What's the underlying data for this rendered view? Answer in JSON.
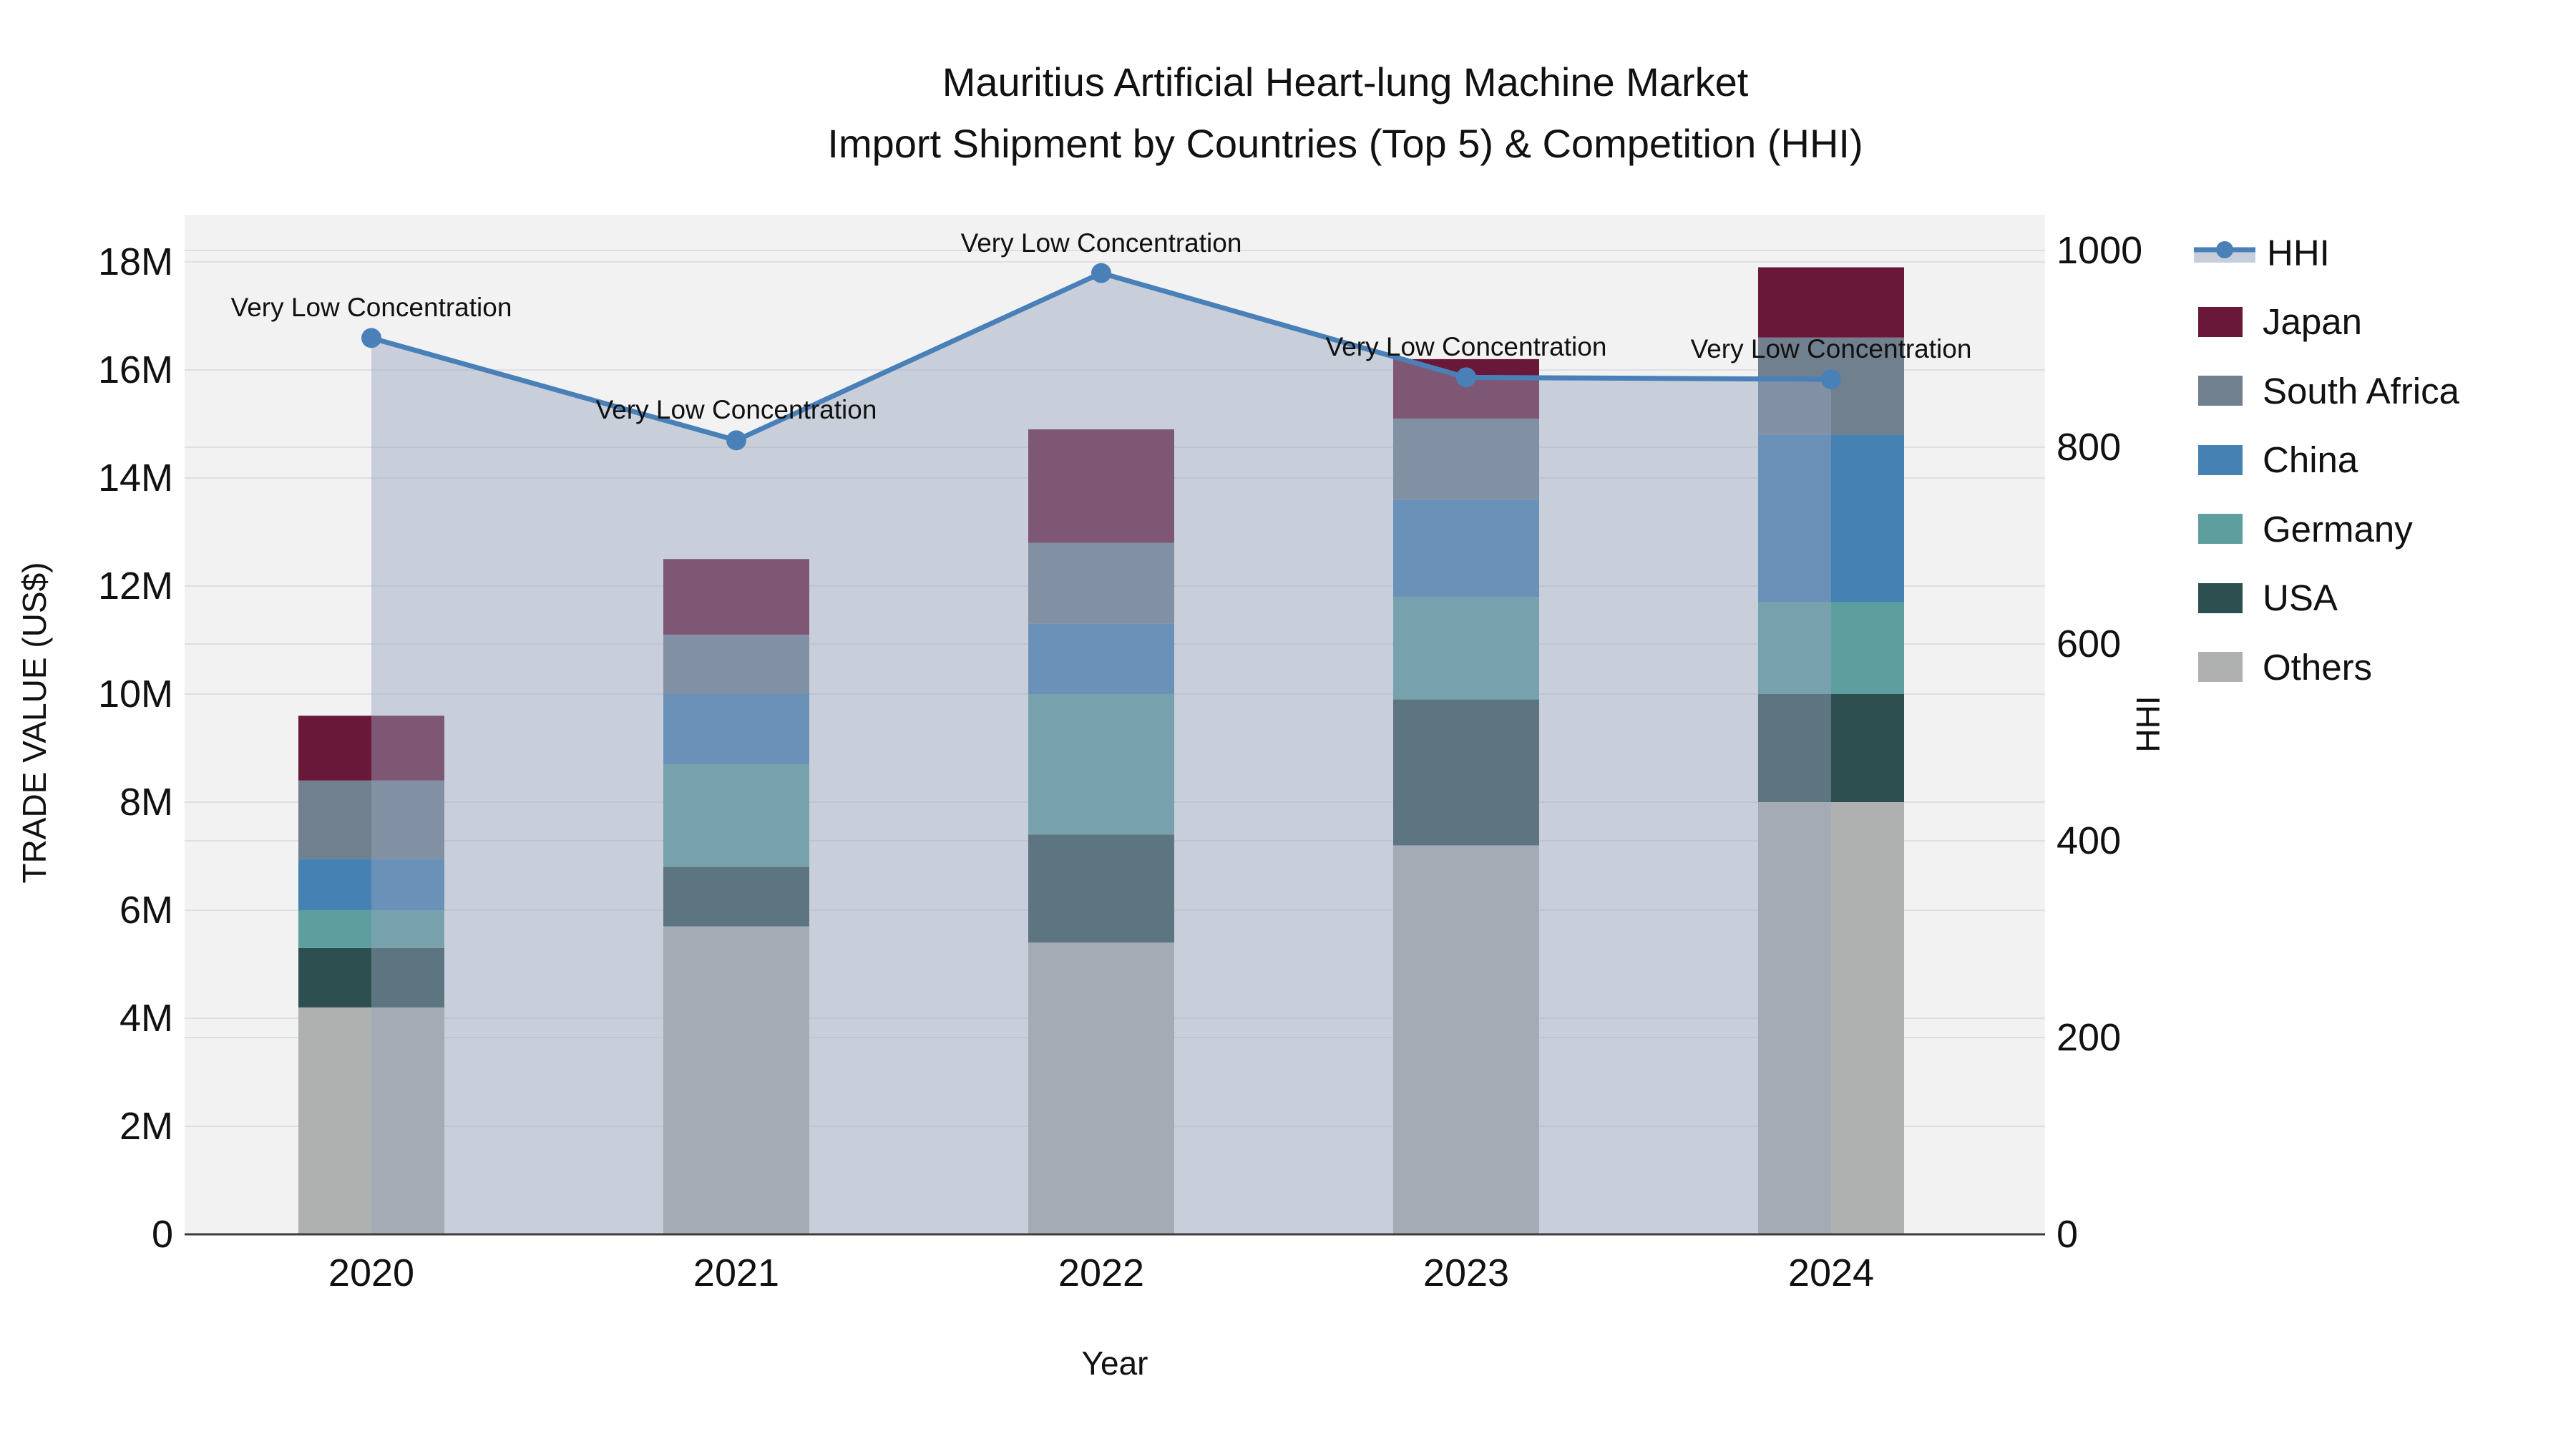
{
  "title": {
    "line1": "Mauritius Artificial Heart-lung Machine Market",
    "line2": "Import Shipment by Countries (Top 5) & Competition (HHI)"
  },
  "axes": {
    "left": {
      "label": "TRADE VALUE (US$)",
      "tick_labels": [
        "0",
        "2M",
        "4M",
        "6M",
        "8M",
        "10M",
        "12M",
        "14M",
        "16M",
        "18M"
      ],
      "tick_values": [
        0,
        2,
        4,
        6,
        8,
        10,
        12,
        14,
        16,
        18
      ],
      "unit": "million US$",
      "range": [
        0,
        18.87
      ]
    },
    "right": {
      "label": "HHI",
      "tick_labels": [
        "0",
        "200",
        "400",
        "600",
        "800",
        "1000"
      ],
      "tick_values": [
        0,
        200,
        400,
        600,
        800,
        1000
      ],
      "range": [
        0,
        1036
      ]
    },
    "x": {
      "label": "Year",
      "categories": [
        "2020",
        "2021",
        "2022",
        "2023",
        "2024"
      ]
    }
  },
  "chart_data": {
    "type": "bar+line",
    "subtype": "stacked-bars-with-secondary-axis-line",
    "categories": [
      "2020",
      "2021",
      "2022",
      "2023",
      "2024"
    ],
    "stack_order_bottom_to_top": [
      "Others",
      "USA",
      "Germany",
      "China",
      "South Africa",
      "Japan"
    ],
    "series": [
      {
        "name": "Japan",
        "color": "#691839",
        "values": [
          1.2,
          1.4,
          2.1,
          1.1,
          1.3
        ]
      },
      {
        "name": "South Africa",
        "color": "#71808f",
        "values": [
          1.45,
          1.1,
          1.5,
          1.5,
          1.8
        ]
      },
      {
        "name": "China",
        "color": "#4681b4",
        "values": [
          0.95,
          1.3,
          1.3,
          1.8,
          3.1
        ]
      },
      {
        "name": "Germany",
        "color": "#5d9f9e",
        "values": [
          0.7,
          1.9,
          2.6,
          1.9,
          1.7
        ]
      },
      {
        "name": "USA",
        "color": "#2e4f50",
        "values": [
          1.1,
          1.1,
          2.0,
          2.7,
          2.0
        ]
      },
      {
        "name": "Others",
        "color": "#afb1b0",
        "values": [
          4.2,
          5.7,
          5.4,
          7.2,
          8.0
        ]
      }
    ],
    "bar_totals": [
      9.6,
      12.5,
      14.9,
      16.2,
      17.9
    ],
    "line_series": {
      "name": "HHI",
      "values": [
        911,
        807,
        977,
        871,
        869
      ],
      "color": "#4a80b8",
      "marker": "circle",
      "area_fill": "rgba(151,164,189,0.45)"
    },
    "annotations": [
      {
        "text": "Very Low Concentration",
        "category": "2020"
      },
      {
        "text": "Very Low Concentration",
        "category": "2021"
      },
      {
        "text": "Very Low Concentration",
        "category": "2022"
      },
      {
        "text": "Very Low Concentration",
        "category": "2023"
      },
      {
        "text": "Very Low Concentration",
        "category": "2024"
      }
    ],
    "grid": "on",
    "plot_bg": "#f2f2f3",
    "gridline_color": "#dcdfe3",
    "axis_line_color": "#3c3c3c",
    "legend_position": "right"
  },
  "legend": {
    "items": [
      {
        "label": "HHI",
        "type": "line",
        "color": "#4a80b8"
      },
      {
        "label": "Japan",
        "type": "swatch",
        "color": "#691839"
      },
      {
        "label": "South Africa",
        "type": "swatch",
        "color": "#71808f"
      },
      {
        "label": "China",
        "type": "swatch",
        "color": "#4681b4"
      },
      {
        "label": "Germany",
        "type": "swatch",
        "color": "#5d9f9e"
      },
      {
        "label": "USA",
        "type": "swatch",
        "color": "#2e4f50"
      },
      {
        "label": "Others",
        "type": "swatch",
        "color": "#afb1b0"
      }
    ]
  }
}
